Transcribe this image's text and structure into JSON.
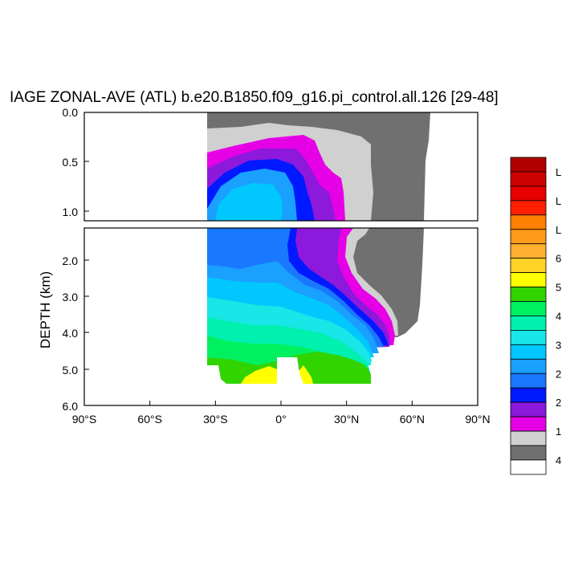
{
  "chart_data": {
    "type": "heatmap",
    "title": "IAGE ZONAL-AVE (ATL) b.e20.B1850.f09_g16.pi_control.all.126 [29-48]",
    "ylabel": "DEPTH (km)",
    "xlabel": "",
    "x_ticks": [
      {
        "value": -90,
        "label": "90°S"
      },
      {
        "value": -60,
        "label": "60°S"
      },
      {
        "value": -30,
        "label": "30°S"
      },
      {
        "value": 0,
        "label": "0°"
      },
      {
        "value": 30,
        "label": "30°N"
      },
      {
        "value": 60,
        "label": "60°N"
      },
      {
        "value": 90,
        "label": "90°N"
      }
    ],
    "xlim": [
      -90,
      90
    ],
    "panels": [
      {
        "name": "upper",
        "ylim": [
          0.0,
          1.15
        ],
        "y_ticks": [
          "0.0",
          "0.5",
          "1.0"
        ],
        "y_values": [
          0.0,
          0.5,
          1.0
        ]
      },
      {
        "name": "lower",
        "ylim": [
          1.15,
          6.0
        ],
        "y_ticks": [
          "2.0",
          "3.0",
          "4.0",
          "5.0",
          "6.0"
        ],
        "y_values": [
          2.0,
          3.0,
          4.0,
          5.0,
          6.0
        ]
      }
    ],
    "colorbar": {
      "colors": [
        "#b00000",
        "#cc0000",
        "#e60000",
        "#ff2000",
        "#ff7f00",
        "#ff9a1a",
        "#ffb030",
        "#ffd426",
        "#ffff00",
        "#32d400",
        "#00f060",
        "#00f0b0",
        "#19e6e6",
        "#00c8ff",
        "#1aa0ff",
        "#1a78ff",
        "#0019ff",
        "#8c19dc",
        "#e600e6",
        "#d0d0d0",
        "#707070",
        "#ffffff"
      ],
      "labels": [
        "L",
        "",
        "L",
        "",
        "L",
        "",
        "6",
        "",
        "5",
        "",
        "4",
        "",
        "3",
        "",
        "2",
        "",
        "2",
        "",
        "1",
        "",
        "4",
        ""
      ]
    },
    "fields": {
      "note_colors": {
        "gray_dark": "#707070",
        "gray_light": "#d0d0d0",
        "magenta": "#e600e6",
        "purple": "#8c19dc",
        "blue": "#0019ff",
        "blue2": "#1a78ff",
        "sky": "#1aa0ff",
        "lightsky": "#00c8ff",
        "cyan": "#19e6e6",
        "teal": "#00f0b0",
        "mint": "#00f060",
        "green": "#32d400",
        "yellow": "#ffff00"
      }
    }
  }
}
